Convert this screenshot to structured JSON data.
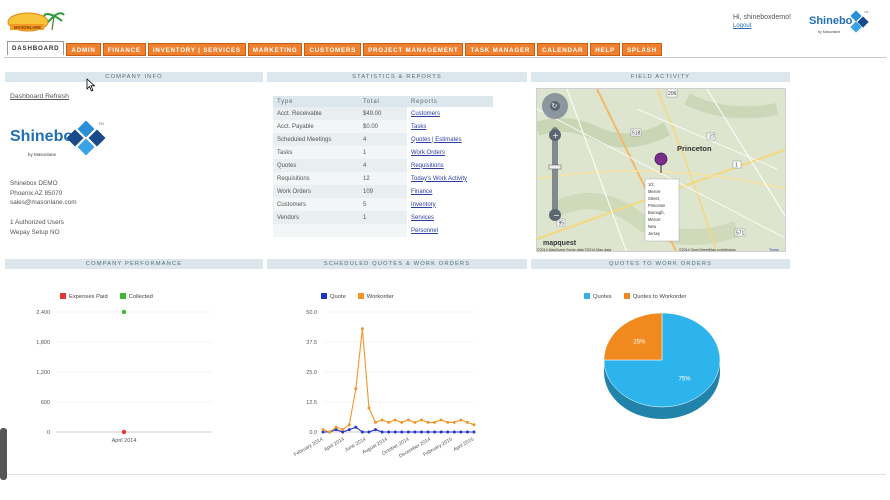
{
  "header": {
    "logo_text": "MASONLANE",
    "greeting": "Hi, shineboxdemo!",
    "logout": "Logout",
    "brand_name": "Shinebo",
    "brand_tagline": "by Masonlane",
    "brand_tm": "TM"
  },
  "nav": {
    "tabs": [
      {
        "label": "Dashboard",
        "active": true
      },
      {
        "label": "Admin"
      },
      {
        "label": "Finance"
      },
      {
        "label": "Inventory | Services"
      },
      {
        "label": "Marketing"
      },
      {
        "label": "Customers"
      },
      {
        "label": "Project Management"
      },
      {
        "label": "Task Manager"
      },
      {
        "label": "Calendar"
      },
      {
        "label": "Help"
      },
      {
        "label": "Splash"
      }
    ]
  },
  "sections": {
    "company_info": "Company Info",
    "stats": "Statistics & Reports",
    "field": "Field Activity",
    "performance": "Company Performance",
    "scheduled": "Scheduled Quotes & Work Orders",
    "q2w": "Quotes to Work Orders"
  },
  "company": {
    "refresh": "Dashboard Refresh",
    "logo_name": "Shinebo",
    "logo_tagline": "by Masonlane",
    "logo_tm": "TM",
    "name": "Shinebox DEMO",
    "city": "Phoenix AZ 85070",
    "email": "sales@masonlane.com",
    "users": "1 Authorized Users",
    "wepay": "Wepay Setup NO"
  },
  "stats_table": {
    "headers": [
      "Type",
      "Total",
      "Reports"
    ],
    "rows": [
      {
        "type": "Acct. Receivable",
        "total": "$49.00",
        "report": "Customers"
      },
      {
        "type": "Acct. Payable",
        "total": "$0.00",
        "report": "Tasks"
      },
      {
        "type": "Scheduled Meetings",
        "total": "4",
        "report": "Quotes | Estimates"
      },
      {
        "type": "Tasks",
        "total": "1",
        "report": "Work Orders"
      },
      {
        "type": "Quotes",
        "total": "4",
        "report": "Requisitions"
      },
      {
        "type": "Requisitions",
        "total": "12",
        "report": "Today's Work Activity"
      },
      {
        "type": "Work Orders",
        "total": "109",
        "report": "Finance"
      },
      {
        "type": "Customers",
        "total": "5",
        "report": "Inventory"
      },
      {
        "type": "Vendors",
        "total": "1",
        "report": "Services"
      },
      {
        "type": "",
        "total": "",
        "report": "Personnel"
      }
    ]
  },
  "map": {
    "city_label": "Princeton",
    "popup": [
      "1/2,",
      "Mercer",
      "Street,",
      "Princeton",
      "Borough,",
      "Mercer",
      "New",
      "Jersey"
    ],
    "route_206": "206",
    "route_27": "27",
    "route_1": "1",
    "route_571": "571",
    "route_518": "518",
    "route_95": "95",
    "attribution": "©2014 MapQuest  Some data ©2014  Map data",
    "provider": "mapquest",
    "osm": "©2014 OpenStreetMap contributors",
    "terms": "Terms"
  },
  "chart_data": [
    {
      "type": "scatter",
      "title": "Company Performance",
      "series": [
        {
          "name": "Expenses Paid",
          "color": "#e8352a",
          "points": [
            {
              "x": "April 2014",
              "y": 0
            }
          ]
        },
        {
          "name": "Collected",
          "color": "#3dbb2e",
          "points": [
            {
              "x": "April 2014",
              "y": 2400
            }
          ]
        }
      ],
      "categories": [
        "April 2014"
      ],
      "yticks": [
        "2,400",
        "1,800",
        "1,200",
        "600",
        "0"
      ],
      "ylim": [
        0,
        2400
      ],
      "legend": "top"
    },
    {
      "type": "line",
      "title": "Scheduled Quotes & Work Orders",
      "xticks": [
        "February 2014",
        "April 2014",
        "June 2014",
        "August 2014",
        "October 2014",
        "December 2014",
        "February 2015",
        "April 2015"
      ],
      "yticks": [
        "50.0",
        "37.5",
        "25.0",
        "12.5",
        "0.0"
      ],
      "ylim": [
        0,
        50
      ],
      "series": [
        {
          "name": "Quote",
          "color": "#2233c8",
          "values": [
            0,
            0,
            1,
            0,
            1,
            2,
            0,
            0,
            1,
            0,
            0,
            0,
            0,
            0,
            0,
            0,
            0,
            0,
            0,
            0,
            0,
            0,
            0,
            0
          ]
        },
        {
          "name": "Workorder",
          "color": "#f0962b",
          "values": [
            1,
            0,
            2,
            1,
            3,
            18,
            43,
            10,
            4,
            5,
            4,
            5,
            4,
            5,
            4,
            5,
            4,
            4,
            5,
            4,
            4,
            5,
            4,
            3
          ]
        }
      ],
      "legend": "top"
    },
    {
      "type": "pie",
      "title": "Quotes to Work Orders",
      "slices": [
        {
          "name": "Quotes",
          "value": 75,
          "label": "75%",
          "color": "#2eb4ec"
        },
        {
          "name": "Quotes to Workorder",
          "value": 25,
          "label": "25%",
          "color": "#f08a1e"
        }
      ],
      "legend": "top"
    }
  ]
}
